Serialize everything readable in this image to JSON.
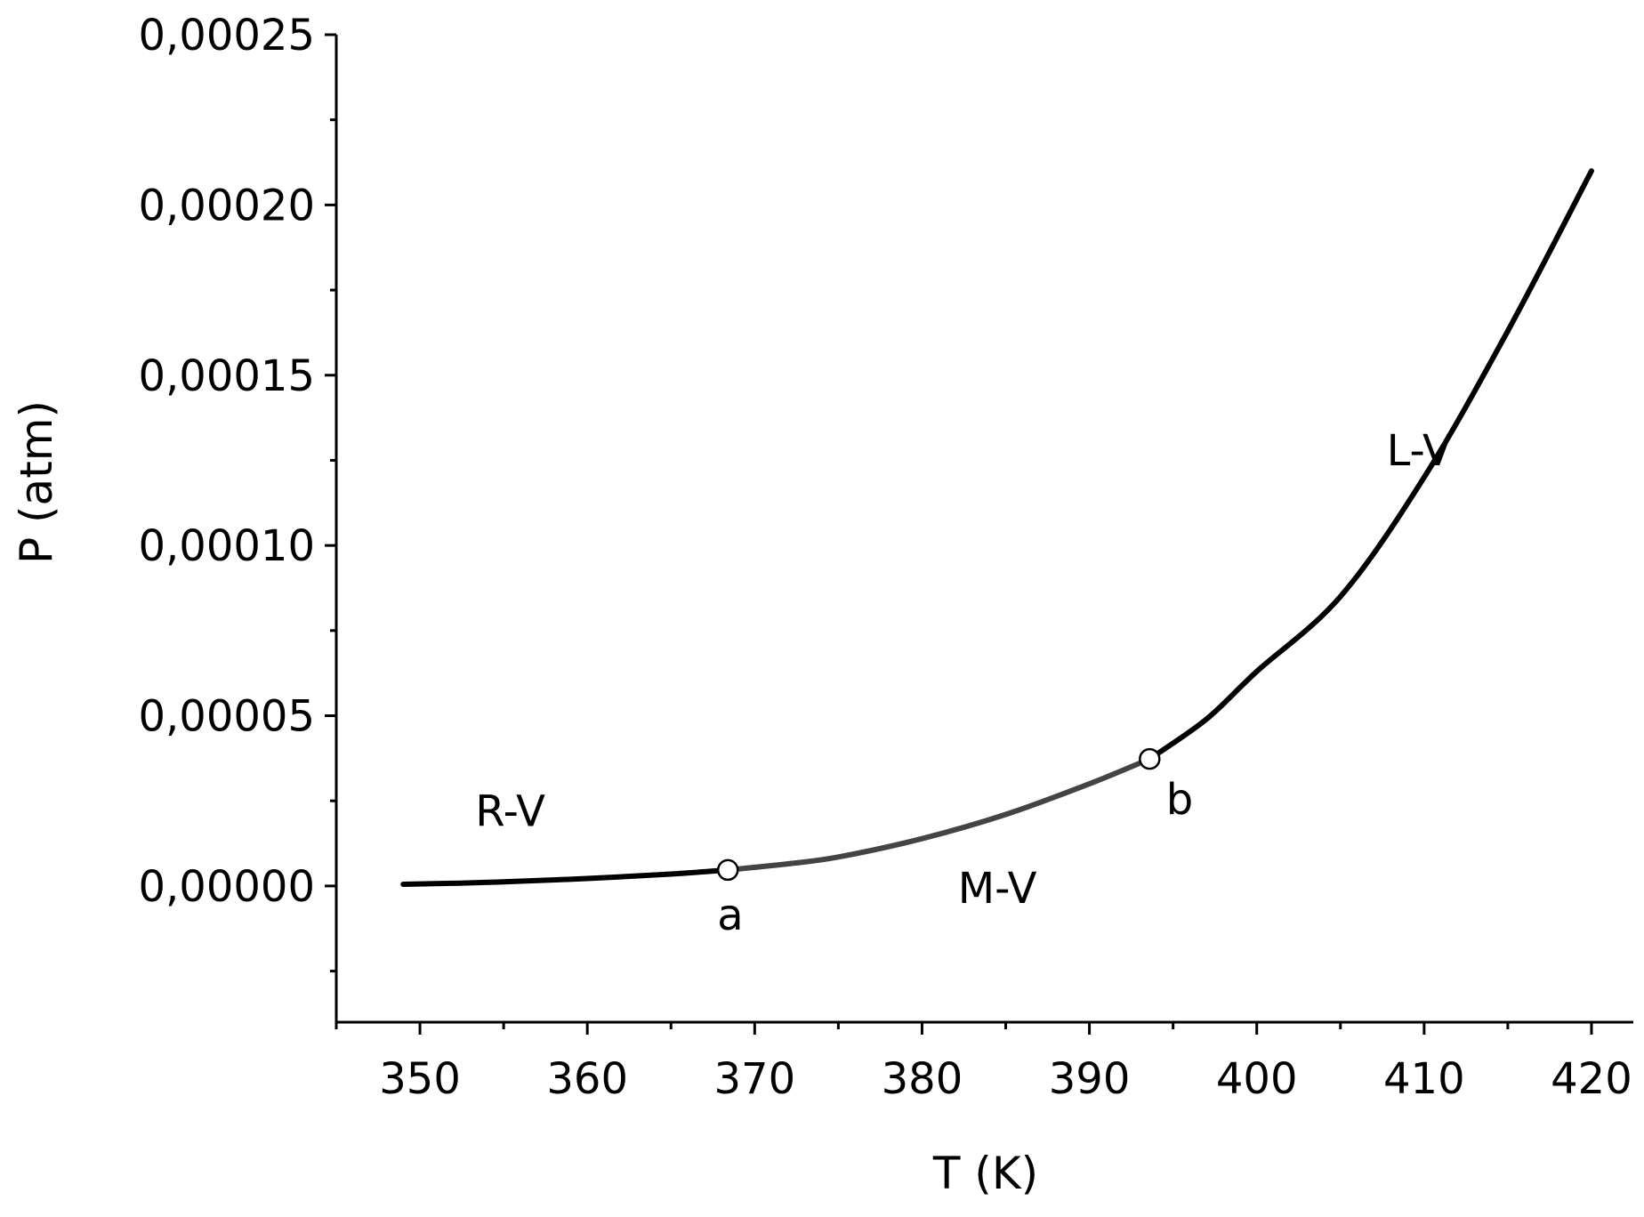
{
  "chart_data": {
    "type": "line",
    "title": "",
    "xlabel": "T (K)",
    "ylabel": "P (atm)",
    "xlim": [
      345,
      422.5
    ],
    "ylim": [
      -4e-05,
      0.00025
    ],
    "xticks": [
      350,
      360,
      370,
      380,
      390,
      400,
      410,
      420
    ],
    "xtick_labels": [
      "350",
      "360",
      "370",
      "380",
      "390",
      "400",
      "410",
      "420"
    ],
    "yticks": [
      0,
      5e-05,
      0.0001,
      0.00015,
      0.0002,
      0.00025
    ],
    "ytick_labels": [
      "0,00000",
      "0,00005",
      "0,00010",
      "0,00015",
      "0,00020",
      "0,00025"
    ],
    "grid": false,
    "series": [
      {
        "name": "R-V",
        "color": "#000000",
        "x": [
          349,
          352,
          355,
          360,
          365,
          368.4
        ],
        "y": [
          5e-07,
          8e-07,
          1.2e-06,
          2.2e-06,
          3.5e-06,
          4.7e-06
        ]
      },
      {
        "name": "M-V",
        "color": "#444444",
        "x": [
          368.4,
          372,
          375,
          380,
          385,
          390,
          393.6
        ],
        "y": [
          4.7e-06,
          6.5e-06,
          8.5e-06,
          1.39e-05,
          2.1e-05,
          3e-05,
          3.73e-05
        ]
      },
      {
        "name": "L-V",
        "color": "#000000",
        "x": [
          393.6,
          397,
          400,
          405,
          410,
          415,
          420
        ],
        "y": [
          3.73e-05,
          4.9e-05,
          6.3e-05,
          8.5e-05,
          0.00012,
          0.000163,
          0.00021
        ]
      }
    ],
    "points": [
      {
        "label": "a",
        "x": 368.4,
        "y": 4.7e-06
      },
      {
        "label": "b",
        "x": 393.6,
        "y": 3.73e-05
      }
    ],
    "annotations": [
      {
        "text": "R-V",
        "x": 355.4,
        "y": 2.2e-05
      },
      {
        "text": "M-V",
        "x": 384.5,
        "y": -5e-07
      },
      {
        "text": "L-V",
        "x": 409.7,
        "y": 0.000128
      }
    ]
  }
}
